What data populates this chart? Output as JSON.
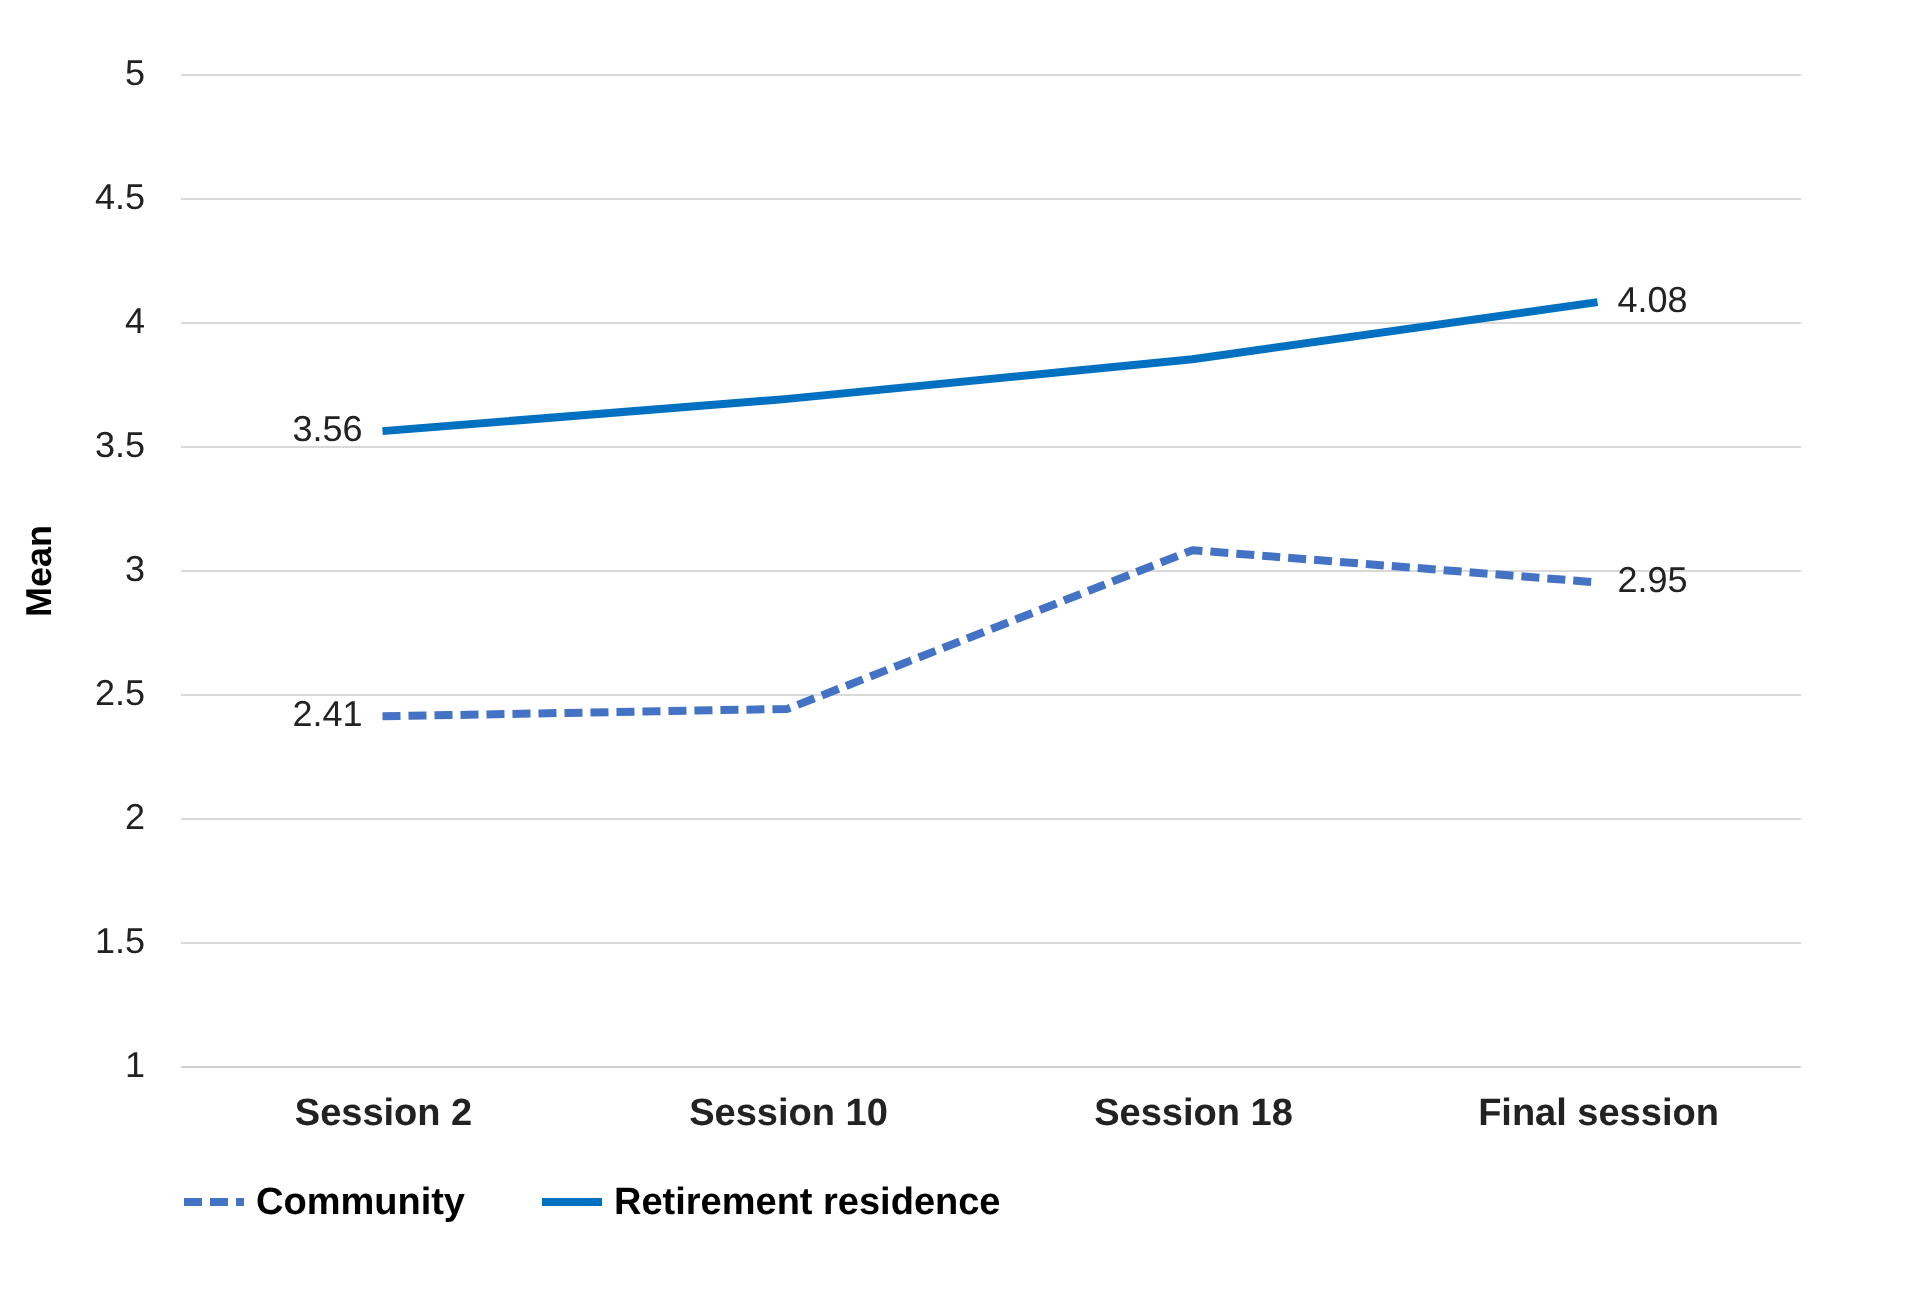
{
  "chart_data": {
    "type": "line",
    "ylabel": "Mean",
    "categories": [
      "Session 2",
      "Session 10",
      "Session 18",
      "Final session"
    ],
    "series": [
      {
        "name": "Community",
        "color": "#4472c4",
        "line_style": "dashed",
        "values": [
          2.41,
          2.44,
          3.08,
          2.95
        ],
        "value_labels": [
          "2.41",
          null,
          null,
          "2.95"
        ]
      },
      {
        "name": "Retirement residence",
        "color": "#0070c0",
        "line_style": "solid",
        "values": [
          3.56,
          3.69,
          3.85,
          4.08
        ],
        "value_labels": [
          "3.56",
          null,
          null,
          "4.08"
        ]
      }
    ],
    "ylim": [
      1,
      5
    ],
    "yticks": [
      1,
      1.5,
      2,
      2.5,
      3,
      3.5,
      4,
      4.5,
      5
    ],
    "grid": "y",
    "legend": "bottom"
  }
}
